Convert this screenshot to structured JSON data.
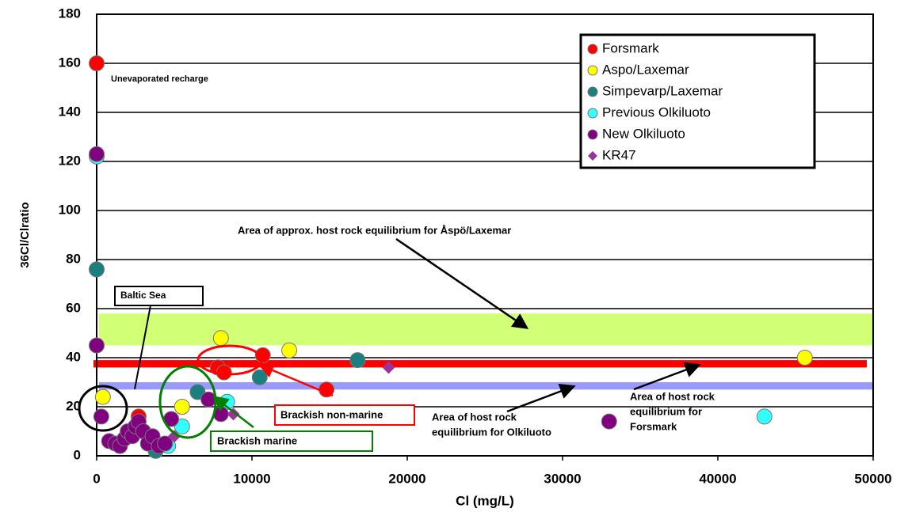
{
  "chart_data": {
    "type": "scatter",
    "x_label": "Cl (mg/L)",
    "y_label": "36Cl/Clratio",
    "xlim": [
      0,
      50000
    ],
    "xticks": [
      0,
      10000,
      20000,
      30000,
      40000,
      50000
    ],
    "ylim": [
      0,
      180
    ],
    "yticks": [
      0,
      20,
      40,
      60,
      80,
      100,
      120,
      140,
      160,
      180
    ],
    "grid": true,
    "bands": [
      {
        "label": [
          "Area of approx. host rock equilibrium for Åspö/Laxemar"
        ],
        "range": [
          45,
          58
        ],
        "color": "#ccff66"
      },
      {
        "label": [
          "Area of host rock",
          "equilibrium for",
          "Forsmark"
        ],
        "range": [
          36,
          39
        ],
        "color": "#ff0000"
      },
      {
        "label": [
          "Area of host rock",
          "equilibrium for Olkiluoto"
        ],
        "range": [
          27,
          30
        ],
        "color": "#9999ff"
      }
    ],
    "annotations": [
      {
        "text": "Unevaporated recharge"
      },
      {
        "text": "Baltic Sea"
      },
      {
        "text": "Brackish non-marine"
      },
      {
        "text": "Brackish marine"
      }
    ],
    "series": [
      {
        "name": "Forsmark",
        "color": "#ff0000",
        "marker": "circle",
        "x": [
          0,
          7800,
          8200,
          10700,
          14800,
          2700
        ],
        "values": [
          160,
          36,
          34,
          41,
          27,
          16
        ]
      },
      {
        "name": "Aspo/Laxemar",
        "color": "#ffff00",
        "marker": "circle",
        "x": [
          400,
          5500,
          12400,
          45600,
          8000
        ],
        "values": [
          24,
          20,
          43,
          40,
          48
        ]
      },
      {
        "name": "Simpevarp/Laxemar",
        "color": "#1a7f7f",
        "marker": "circle",
        "x": [
          0,
          6500,
          10500,
          16800,
          3800
        ],
        "values": [
          76,
          26,
          32,
          39,
          2
        ]
      },
      {
        "name": "Previous Olkiluoto",
        "color": "#33ffff",
        "marker": "circle",
        "x": [
          0,
          8400,
          43000,
          5500,
          4600
        ],
        "values": [
          122,
          22,
          16,
          12,
          4
        ]
      },
      {
        "name": "New Olkiluoto",
        "color": "#800080",
        "marker": "circle",
        "x": [
          0,
          0,
          300,
          800,
          1200,
          1500,
          1800,
          2000,
          2300,
          2500,
          2700,
          3000,
          3300,
          3600,
          4000,
          4400,
          4800,
          7200,
          8000,
          33000
        ],
        "values": [
          123,
          45,
          16,
          6,
          5,
          4,
          7,
          10,
          8,
          12,
          14,
          10,
          5,
          8,
          4,
          5,
          15,
          23,
          17,
          14
        ]
      },
      {
        "name": "KR47",
        "color": "#993399",
        "marker": "diamond",
        "x": [
          8800,
          18800,
          5000
        ],
        "values": [
          17,
          36,
          8
        ]
      }
    ]
  }
}
